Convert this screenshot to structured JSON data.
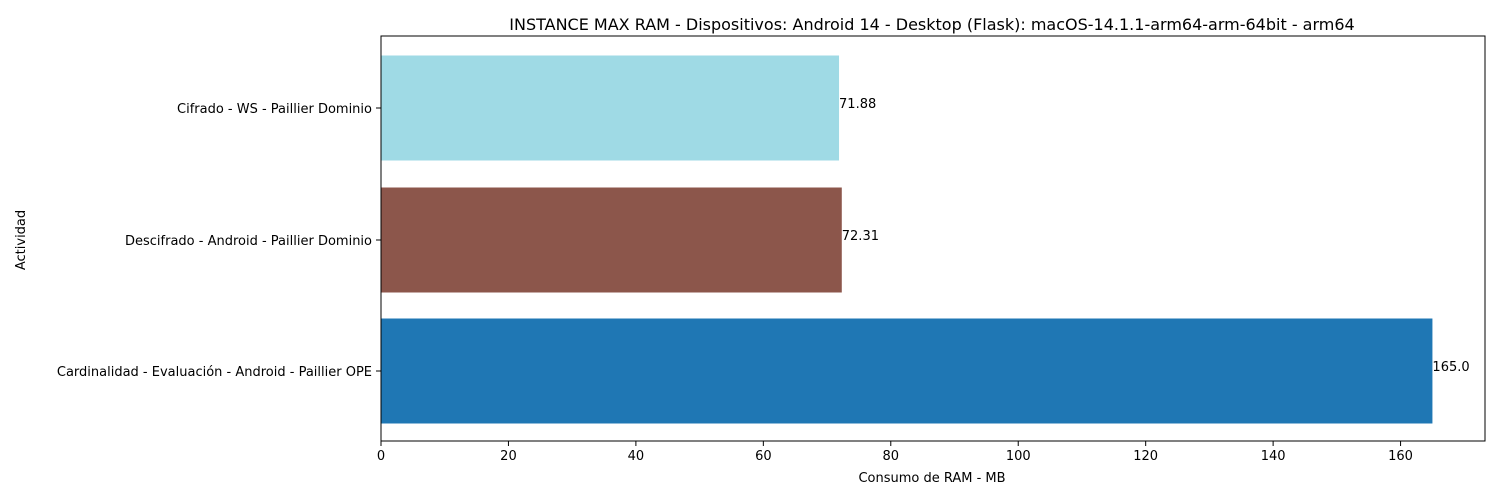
{
  "chart_data": {
    "type": "bar",
    "orientation": "horizontal",
    "title": "INSTANCE MAX RAM - Dispositivos: Android 14 - Desktop (Flask): macOS-14.1.1-arm64-arm-64bit - arm64",
    "xlabel": "Consumo de RAM - MB",
    "ylabel": "Actividad",
    "categories": [
      "Cifrado - WS - Paillier Dominio",
      "Descifrado - Android - Paillier Dominio",
      "Cardinalidad - Evaluación - Android - Paillier OPE"
    ],
    "values": [
      71.88,
      72.31,
      165.0
    ],
    "value_labels": [
      "71.88",
      "72.31",
      "165.0"
    ],
    "colors": [
      "#9fdae5",
      "#8c564b",
      "#1f77b4"
    ],
    "xlim": [
      0,
      173.25
    ],
    "xticks": [
      0,
      20,
      40,
      60,
      80,
      100,
      120,
      140,
      160
    ],
    "grid": false,
    "legend": "none"
  }
}
